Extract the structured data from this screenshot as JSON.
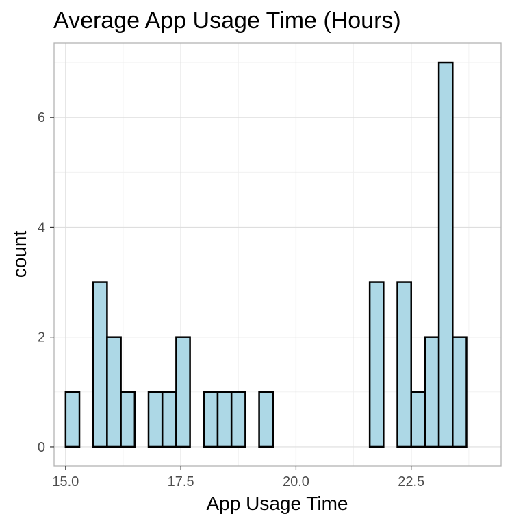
{
  "chart_data": {
    "type": "bar",
    "subtype": "histogram",
    "title": "Average App Usage Time (Hours)",
    "xlabel": "App Usage Time",
    "ylabel": "count",
    "xlim": [
      14.75,
      24.45
    ],
    "ylim": [
      -0.35,
      7.35
    ],
    "x_ticks": [
      15.0,
      17.5,
      20.0,
      22.5
    ],
    "x_tick_labels": [
      "15.0",
      "17.5",
      "20.0",
      "22.5"
    ],
    "y_ticks": [
      0,
      2,
      4,
      6
    ],
    "y_tick_labels": [
      "0",
      "2",
      "4",
      "6"
    ],
    "bin_width": 0.3,
    "bin_start": 15.0,
    "values": [
      1,
      0,
      3,
      2,
      1,
      0,
      1,
      1,
      2,
      0,
      1,
      1,
      1,
      0,
      1,
      0,
      0,
      0,
      0,
      0,
      0,
      0,
      3,
      0,
      3,
      1,
      2,
      7,
      2
    ],
    "grid": true,
    "legend": "none"
  },
  "colors": {
    "bar_fill": "#add8e6",
    "bar_stroke": "#000000",
    "panel_border": "#b3b3b3",
    "grid_major": "#dedede",
    "grid_minor": "#efefef"
  }
}
